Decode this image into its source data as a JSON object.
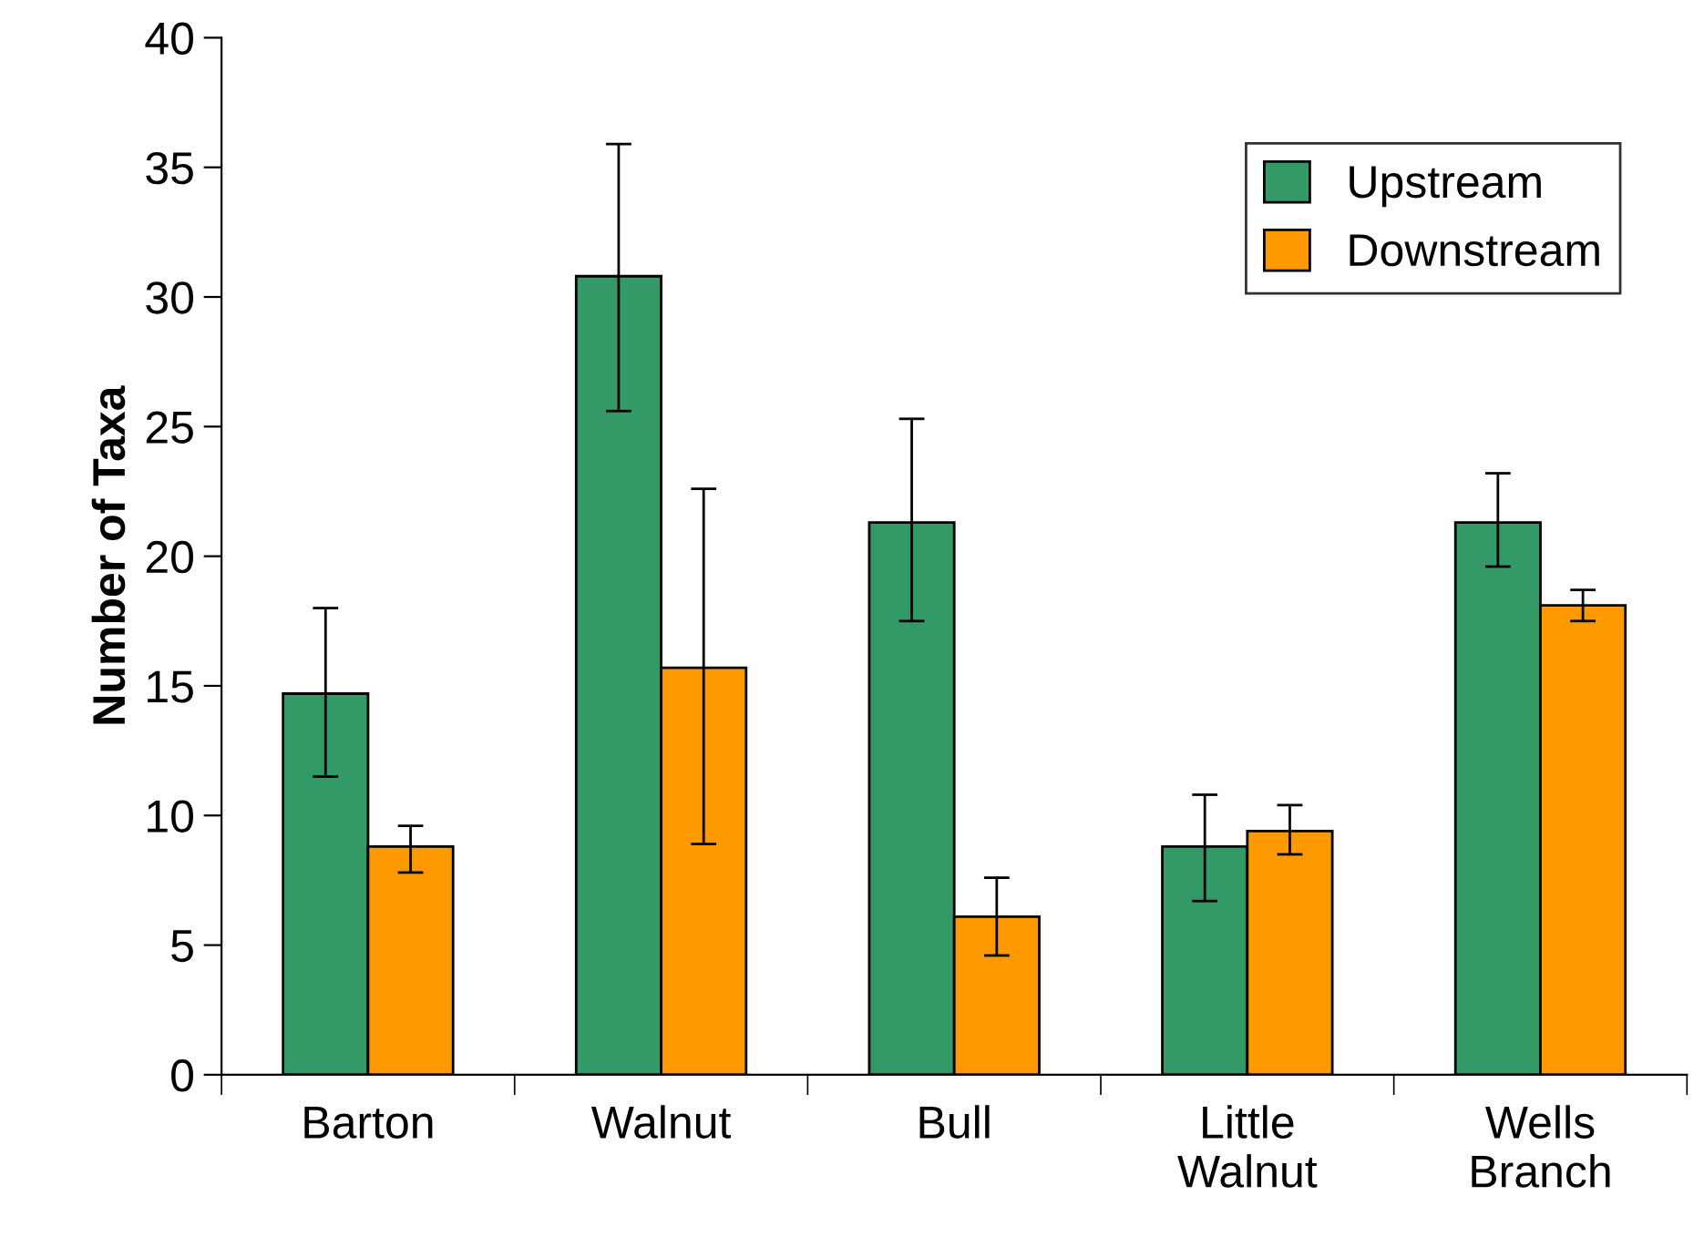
{
  "chart_data": {
    "type": "bar",
    "ylabel": "Number of Taxa",
    "categories": [
      "Barton",
      "Walnut",
      "Bull",
      "Little\nWalnut",
      "Wells\nBranch"
    ],
    "series": [
      {
        "name": "Upstream",
        "color": "#339966",
        "values": [
          14.7,
          30.8,
          21.3,
          8.8,
          21.3
        ],
        "errors": [
          [
            11.5,
            18.0
          ],
          [
            25.6,
            35.9
          ],
          [
            17.5,
            25.3
          ],
          [
            6.7,
            10.8
          ],
          [
            19.6,
            23.2
          ]
        ]
      },
      {
        "name": "Downstream",
        "color": "#ff9900",
        "values": [
          8.8,
          15.7,
          6.1,
          9.4,
          18.1
        ],
        "errors": [
          [
            7.8,
            9.6
          ],
          [
            8.9,
            22.6
          ],
          [
            4.6,
            7.6
          ],
          [
            8.5,
            10.4
          ],
          [
            17.5,
            18.7
          ]
        ]
      }
    ],
    "ylim": [
      0,
      40
    ],
    "yticks": [
      0,
      5,
      10,
      15,
      20,
      25,
      30,
      35,
      40
    ],
    "grid": false,
    "legend": "top right"
  }
}
